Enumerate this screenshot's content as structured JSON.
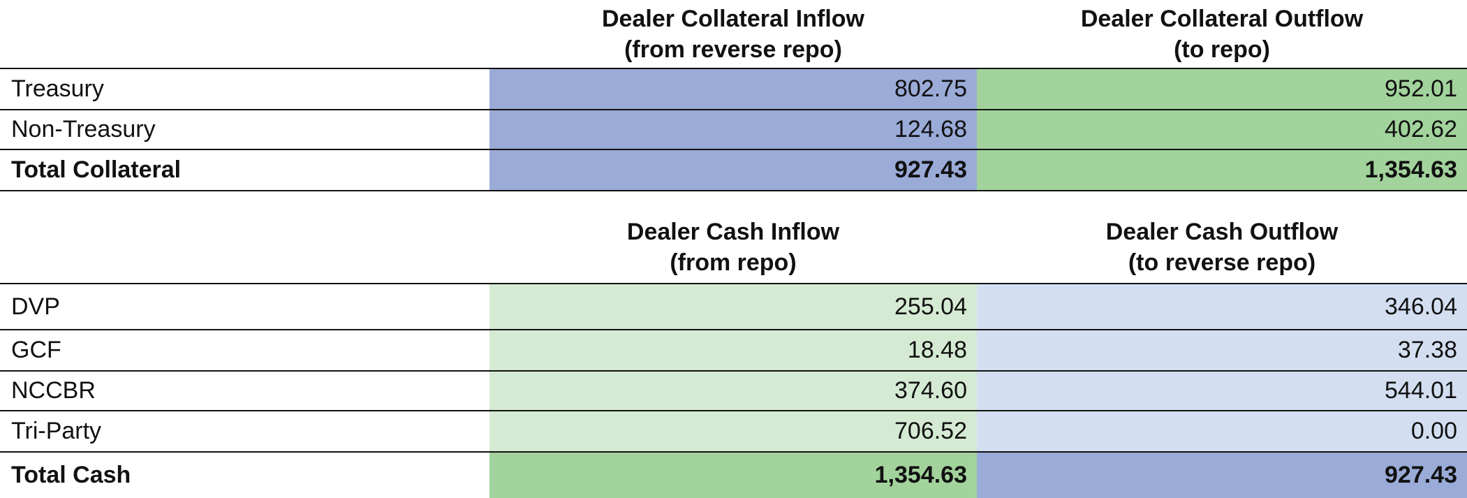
{
  "sections": [
    {
      "headers": [
        [
          "Dealer Collateral Inflow",
          "(from reverse repo)"
        ],
        [
          "Dealer Collateral Outflow",
          "(to repo)"
        ]
      ],
      "rows": [
        {
          "label": "Treasury",
          "values": [
            "802.75",
            "952.01"
          ]
        },
        {
          "label": "Non-Treasury",
          "values": [
            "124.68",
            "402.62"
          ]
        }
      ],
      "total": {
        "label": "Total Collateral",
        "values": [
          "927.43",
          "1,354.63"
        ]
      }
    },
    {
      "headers": [
        [
          "Dealer Cash Inflow",
          "(from repo)"
        ],
        [
          "Dealer Cash Outflow",
          "(to reverse repo)"
        ]
      ],
      "rows": [
        {
          "label": "DVP",
          "values": [
            "255.04",
            "346.04"
          ]
        },
        {
          "label": "GCF",
          "values": [
            "18.48",
            "37.38"
          ]
        },
        {
          "label": "NCCBR",
          "values": [
            "374.60",
            "544.01"
          ]
        },
        {
          "label": "Tri-Party",
          "values": [
            "706.52",
            "0.00"
          ]
        }
      ],
      "total": {
        "label": "Total Cash",
        "values": [
          "1,354.63",
          "927.43"
        ]
      }
    }
  ]
}
